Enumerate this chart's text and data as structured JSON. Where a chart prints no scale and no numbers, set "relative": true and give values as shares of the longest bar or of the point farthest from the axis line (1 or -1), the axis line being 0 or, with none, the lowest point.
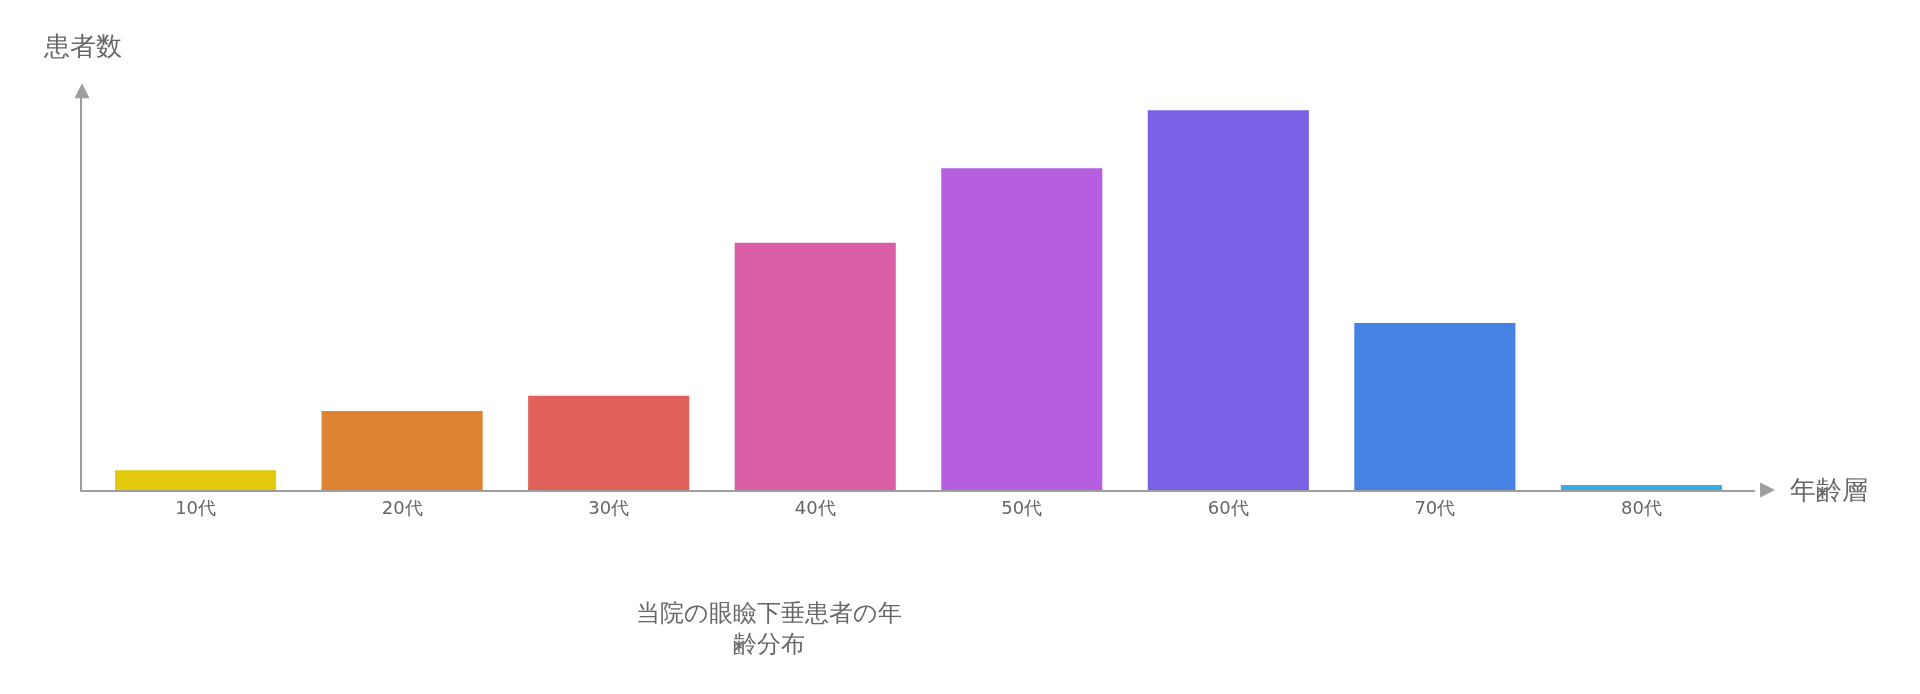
{
  "chart_data": {
    "type": "bar",
    "relative": true,
    "title": "当院の眼瞼下垂患者の年齢分布",
    "xlabel": "年齢層",
    "ylabel": "患者数",
    "categories": [
      "10代",
      "20代",
      "30代",
      "40代",
      "50代",
      "60代",
      "70代",
      "80代"
    ],
    "values": [
      0.052,
      0.208,
      0.248,
      0.651,
      0.847,
      1,
      0.44,
      0.013
    ],
    "colors": [
      "#e2c90b",
      "#dc8432",
      "#e0605a",
      "#d95ea6",
      "#b55fe0",
      "#7a60e4",
      "#4682e4",
      "#35aee0"
    ],
    "legend": false
  }
}
